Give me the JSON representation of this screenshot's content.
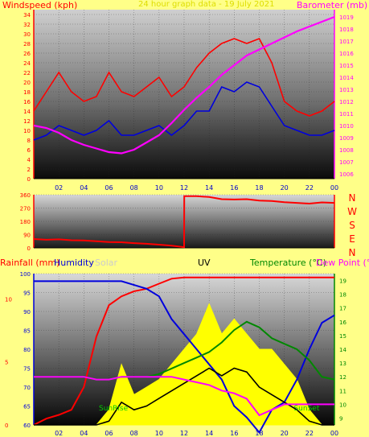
{
  "top_chart": {
    "label_left": "Windspeed (kph)",
    "label_center": "24 hour graph data - 19 July 2021",
    "label_right": "Barometer (mb)",
    "colors": {
      "label_left": "#ff0000",
      "label_center": "#dddd00",
      "label_right": "#ff00ff"
    }
  },
  "direction_chart": {
    "compass_letters": [
      "N",
      "W",
      "S",
      "E",
      "N"
    ],
    "compass_color": "#ff0000"
  },
  "bottom_chart": {
    "label_rain": "Rainfall (mm)",
    "label_humidity": "Humidity",
    "label_solar": "Solar",
    "label_uv": "UV",
    "label_temp": "Temperature (°C)",
    "label_dew": "Dew Point (°C)",
    "label_sunrise": "SunRise",
    "label_sunset": "SunSet",
    "colors": {
      "rain": "#ff0000",
      "humidity": "#0000dd",
      "solar": "#cccccc",
      "uv": "#000000",
      "temp": "#008800",
      "dew": "#ff00ff"
    }
  },
  "x_axis_ticks": [
    "02",
    "04",
    "06",
    "08",
    "10",
    "12",
    "14",
    "16",
    "18",
    "20",
    "22",
    "00"
  ],
  "chart_data": [
    {
      "type": "line",
      "title": "24 hour graph data - 19 July 2021",
      "x_hours": [
        0,
        1,
        2,
        3,
        4,
        5,
        6,
        7,
        8,
        9,
        10,
        11,
        12,
        13,
        14,
        15,
        16,
        17,
        18,
        19,
        20,
        21,
        22,
        23,
        24
      ],
      "series": [
        {
          "name": "Windspeed (kph)",
          "axis": "left",
          "color": "#ff0000",
          "values": [
            14,
            18,
            22,
            18,
            16,
            17,
            22,
            18,
            17,
            19,
            21,
            17,
            19,
            23,
            26,
            28,
            29,
            28,
            29,
            24,
            16,
            14,
            13,
            14,
            16
          ]
        },
        {
          "name": "Windspeed (kph)",
          "axis": "left",
          "color": "#0000dd",
          "values": [
            8,
            9,
            11,
            10,
            9,
            10,
            12,
            9,
            9,
            10,
            11,
            9,
            11,
            14,
            14,
            19,
            18,
            20,
            19,
            15,
            11,
            10,
            9,
            9,
            10
          ]
        },
        {
          "name": "Barometer (mb)",
          "axis": "right",
          "color": "#ff00ff",
          "values": [
            1010,
            1009.8,
            1009.4,
            1008.8,
            1008.4,
            1008.1,
            1007.8,
            1007.7,
            1008,
            1008.6,
            1009.2,
            1010.2,
            1011.3,
            1012.3,
            1013.2,
            1014.2,
            1015,
            1015.8,
            1016.3,
            1016.8,
            1017.3,
            1017.8,
            1018.2,
            1018.6,
            1019
          ]
        }
      ],
      "y_left": {
        "ticks": [
          0,
          2,
          4,
          6,
          8,
          10,
          12,
          14,
          16,
          18,
          20,
          22,
          24,
          26,
          28,
          30,
          32,
          34
        ],
        "range": [
          0,
          35
        ]
      },
      "y_right": {
        "ticks": [
          1006,
          1007,
          1008,
          1009,
          1010,
          1011,
          1012,
          1013,
          1014,
          1015,
          1016,
          1017,
          1018,
          1019
        ],
        "range": [
          1005.6,
          1019.6
        ]
      },
      "xlim": [
        0,
        24
      ]
    },
    {
      "type": "line",
      "x_hours": [
        0,
        1,
        2,
        3,
        4,
        5,
        6,
        7,
        8,
        9,
        10,
        11,
        12,
        12.01,
        13,
        14,
        15,
        16,
        17,
        18,
        19,
        20,
        21,
        22,
        23,
        24
      ],
      "series": [
        {
          "name": "Wind direction",
          "color": "#ff0000",
          "values": [
            60,
            55,
            58,
            52,
            50,
            45,
            40,
            38,
            32,
            28,
            22,
            15,
            5,
            350,
            350,
            345,
            330,
            328,
            330,
            320,
            318,
            310,
            305,
            300,
            308,
            305
          ]
        }
      ],
      "y_left": {
        "ticks": [
          0,
          90,
          180,
          270,
          360
        ],
        "range": [
          0,
          360
        ]
      },
      "xlim": [
        0,
        24
      ]
    },
    {
      "type": "line",
      "x_hours": [
        0,
        1,
        2,
        3,
        4,
        5,
        6,
        7,
        8,
        9,
        10,
        11,
        12,
        13,
        14,
        15,
        16,
        17,
        18,
        19,
        20,
        21,
        22,
        23,
        24
      ],
      "series": [
        {
          "name": "Rainfall (mm)",
          "axis": "rain",
          "color": "#ff0000",
          "values": [
            0,
            0.5,
            0.8,
            1.2,
            3,
            7,
            9.5,
            10.2,
            10.6,
            10.8,
            11.2,
            11.6,
            11.7,
            11.7,
            11.7,
            11.7,
            11.7,
            11.7,
            11.7,
            11.7,
            11.7,
            11.7,
            11.7,
            11.7,
            11.7
          ]
        },
        {
          "name": "Humidity",
          "axis": "humidity",
          "color": "#0000dd",
          "values": [
            98,
            98,
            98,
            98,
            98,
            98,
            98,
            98,
            97,
            96,
            94,
            88,
            84,
            80,
            76,
            72,
            65,
            62,
            58,
            64,
            66,
            72,
            80,
            87,
            89
          ]
        },
        {
          "name": "Solar",
          "color": "#cccccc",
          "values": [
            0,
            0,
            0,
            0,
            0,
            0,
            2,
            8,
            4,
            5,
            6,
            8,
            10,
            12,
            16,
            12,
            14,
            12,
            10,
            10,
            8,
            6,
            2,
            0,
            0
          ]
        },
        {
          "name": "UV",
          "color": "#000000",
          "values": [
            0,
            0,
            0,
            0,
            0,
            0,
            0.2,
            1.2,
            0.8,
            1,
            1.4,
            1.8,
            2.2,
            2.6,
            3,
            2.6,
            3,
            2.8,
            2,
            1.6,
            1.2,
            0.8,
            0.2,
            0,
            0
          ]
        },
        {
          "name": "Temperature (°C)",
          "axis": "temp",
          "color": "#008800",
          "values": [
            12,
            12,
            12,
            12,
            12,
            11.8,
            11.8,
            12,
            12,
            12,
            12.2,
            12.6,
            13,
            13.4,
            13.8,
            14.5,
            15.4,
            16,
            15.6,
            14.8,
            14.4,
            14,
            13.2,
            12,
            11.8
          ]
        },
        {
          "name": "Dew Point (°C)",
          "axis": "temp",
          "color": "#ff00ff",
          "values": [
            12,
            12,
            12,
            12,
            12,
            11.8,
            11.8,
            12,
            12,
            12,
            12,
            12,
            11.8,
            11.6,
            11.4,
            11,
            10.8,
            10.4,
            9.2,
            9.6,
            10,
            10,
            10,
            10,
            10
          ]
        }
      ],
      "y_rain": {
        "ticks": [
          0,
          5,
          10
        ],
        "range": [
          0,
          12
        ]
      },
      "y_humidity": {
        "ticks": [
          60,
          65,
          70,
          75,
          80,
          85,
          90,
          95,
          100
        ],
        "range": [
          60,
          100
        ]
      },
      "y_temp": {
        "ticks": [
          9,
          10,
          11,
          12,
          13,
          14,
          15,
          16,
          17,
          18,
          19
        ],
        "range": [
          8.5,
          19.5
        ]
      },
      "xlim": [
        0,
        24
      ],
      "sunrise_hour": 5.2,
      "sunset_hour": 21.4
    }
  ]
}
